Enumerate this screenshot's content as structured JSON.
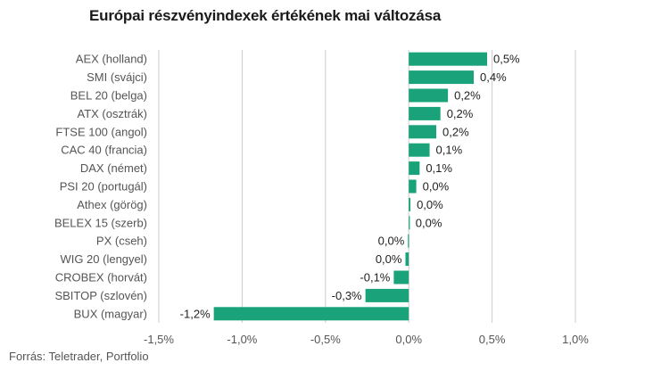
{
  "chart_data": {
    "type": "bar",
    "orientation": "horizontal",
    "title": "Európai részvényindexek értékének mai változása",
    "source": "Forrás: Teletrader, Portfolio",
    "bar_color": "#1aa37a",
    "grid_color": "#cccccc",
    "xlim": [
      -1.5,
      1.0
    ],
    "grid": true,
    "ticks": [
      {
        "value": -1.5,
        "label": "-1,5%"
      },
      {
        "value": -1.0,
        "label": "-1,0%"
      },
      {
        "value": -0.5,
        "label": "-0,5%"
      },
      {
        "value": 0.0,
        "label": "0,0%"
      },
      {
        "value": 0.5,
        "label": "0,5%"
      },
      {
        "value": 1.0,
        "label": "1,0%"
      }
    ],
    "categories": [
      "AEX (holland)",
      "SMI (svájci)",
      "BEL 20 (belga)",
      "ATX (osztrák)",
      "FTSE 100 (angol)",
      "CAC 40 (francia)",
      "DAX (német)",
      "PSI 20 (portugál)",
      "Athex (görög)",
      "BELEX 15 (szerb)",
      "PX (cseh)",
      "WIG 20 (lengyel)",
      "CROBEX (horvát)",
      "SBITOP (szlovén)",
      "BUX (magyar)"
    ],
    "values": [
      0.47,
      0.39,
      0.235,
      0.19,
      0.165,
      0.125,
      0.065,
      0.045,
      0.01,
      0.003,
      -0.005,
      -0.02,
      -0.09,
      -0.26,
      -1.17
    ],
    "value_labels": [
      "0,5%",
      "0,4%",
      "0,2%",
      "0,2%",
      "0,2%",
      "0,1%",
      "0,1%",
      "0,0%",
      "0,0%",
      "0,0%",
      "0,0%",
      "0,0%",
      "-0,1%",
      "-0,3%",
      "-1,2%"
    ]
  }
}
